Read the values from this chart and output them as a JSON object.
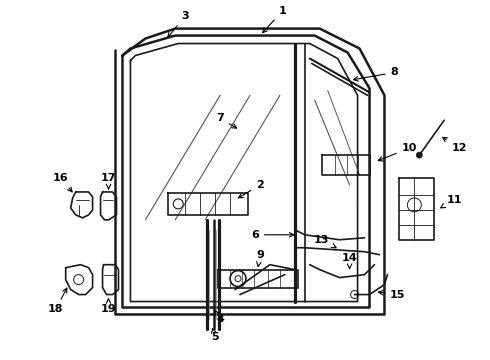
{
  "bg_color": "#ffffff",
  "line_color": "#1a1a1a",
  "lw_main": 1.8,
  "lw_med": 1.2,
  "lw_thin": 0.8,
  "figsize": [
    4.9,
    3.6
  ],
  "dpi": 100
}
